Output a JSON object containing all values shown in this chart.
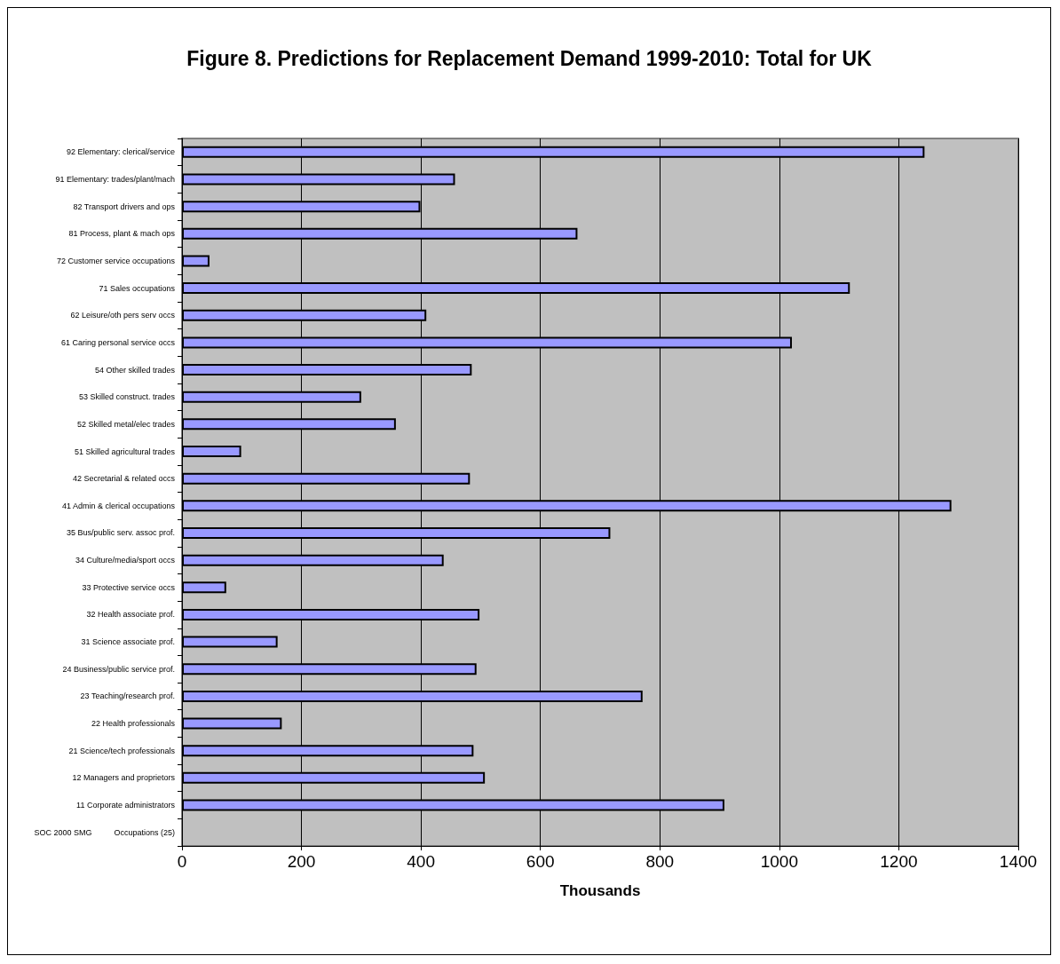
{
  "chart_data": {
    "type": "bar",
    "orientation": "horizontal",
    "title": "Figure 8. Predictions for Replacement Demand 1999-2010: Total for UK",
    "xlabel": "Thousands",
    "categories": [
      "92 Elementary: clerical/service",
      "91 Elementary: trades/plant/mach",
      "82 Transport drivers and ops",
      "81 Process, plant & mach ops",
      "72 Customer service occupations",
      "71 Sales occupations",
      "62 Leisure/oth pers serv occs",
      "61 Caring personal service occs",
      "54 Other skilled trades",
      "53 Skilled construct. trades",
      "52 Skilled metal/elec trades",
      "51 Skilled agricultural trades",
      "42 Secretarial & related occs",
      "41 Admin & clerical occupations",
      "35 Bus/public serv. assoc prof.",
      "34 Culture/media/sport occs",
      "33 Protective service occs",
      "32 Health associate prof.",
      "31 Science associate prof.",
      "24 Business/public service prof.",
      "23 Teaching/research prof.",
      "22 Health professionals",
      "21 Science/tech professionals",
      "12 Managers and proprietors",
      "11 Corporate administrators",
      "SOC 2000 SMG          Occupations (25)"
    ],
    "values": [
      1243,
      457,
      399,
      662,
      46,
      1118,
      409,
      1021,
      485,
      300,
      358,
      99,
      482,
      1288,
      717,
      438,
      74,
      498,
      160,
      493,
      771,
      167,
      488,
      507,
      908,
      null
    ],
    "color": "#9999ff",
    "xlim": [
      0,
      1400
    ],
    "xticks": [
      0,
      200,
      400,
      600,
      800,
      1000,
      1200,
      1400
    ],
    "grid": "x"
  }
}
